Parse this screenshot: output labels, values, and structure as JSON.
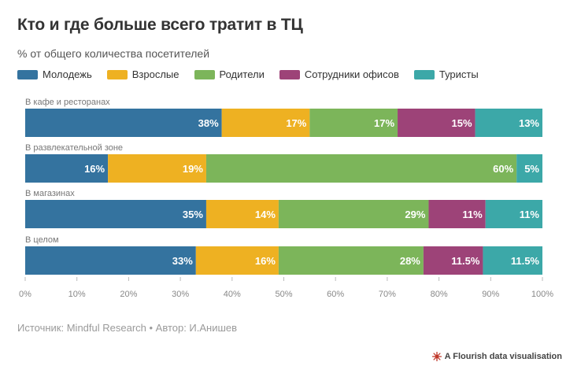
{
  "title": "Кто и где больше всего тратит в ТЦ",
  "subtitle": "% от общего количества посетителей",
  "source": "Источник: Mindful Research • Автор: И.Анишев",
  "credit": "A Flourish data visualisation",
  "chart_data": {
    "type": "bar",
    "orientation": "horizontal",
    "stacked": true,
    "categories": [
      "В кафе и ресторанах",
      "В развлекательной зоне",
      "В магазинах",
      "В целом"
    ],
    "series": [
      {
        "name": "Молодежь",
        "color": "#34739f",
        "values": [
          38,
          16,
          35,
          33
        ],
        "labels": [
          "38%",
          "16%",
          "35%",
          "33%"
        ]
      },
      {
        "name": "Взрослые",
        "color": "#eeb122",
        "values": [
          17,
          19,
          14,
          16
        ],
        "labels": [
          "17%",
          "19%",
          "14%",
          "16%"
        ]
      },
      {
        "name": "Родители",
        "color": "#7cb55a",
        "values": [
          17,
          60,
          29,
          28
        ],
        "labels": [
          "17%",
          "60%",
          "29%",
          "28%"
        ]
      },
      {
        "name": "Сотрудники офисов",
        "color": "#9d4378",
        "values": [
          15,
          0,
          11,
          11.5
        ],
        "labels": [
          "15%",
          "",
          "11%",
          "11.5%"
        ]
      },
      {
        "name": "Туристы",
        "color": "#3ca8a8",
        "values": [
          13,
          5,
          11,
          11.5
        ],
        "labels": [
          "13%",
          "5%",
          "11%",
          "11.5%"
        ]
      }
    ],
    "xlim": [
      0,
      100
    ],
    "xticks": [
      "0%",
      "10%",
      "20%",
      "30%",
      "40%",
      "50%",
      "60%",
      "70%",
      "80%",
      "90%",
      "100%"
    ],
    "legend": "top-left",
    "grid": false
  }
}
